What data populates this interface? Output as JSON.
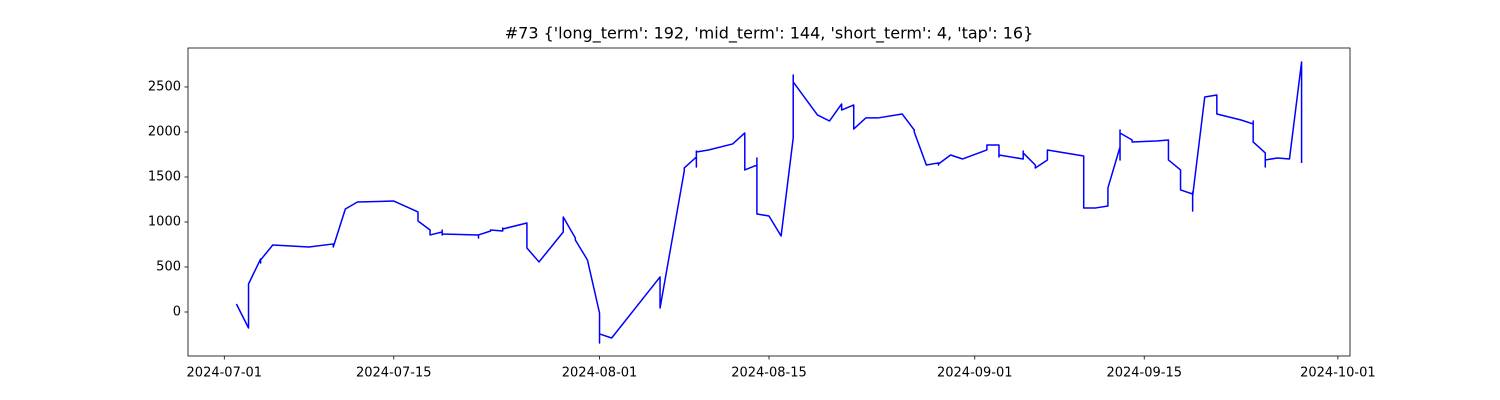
{
  "chart_data": {
    "type": "line",
    "title": "#73 {'long_term': 192, 'mid_term': 144, 'short_term': 4, 'tap': 16}",
    "x": [
      "2024-07-02",
      "2024-07-03",
      "2024-07-03",
      "2024-07-03",
      "2024-07-04",
      "2024-07-04",
      "2024-07-04",
      "2024-07-05",
      "2024-07-08",
      "2024-07-10",
      "2024-07-10",
      "2024-07-11",
      "2024-07-12",
      "2024-07-15",
      "2024-07-17",
      "2024-07-17",
      "2024-07-18",
      "2024-07-18",
      "2024-07-19",
      "2024-07-19",
      "2024-07-19",
      "2024-07-19",
      "2024-07-22",
      "2024-07-22",
      "2024-07-22",
      "2024-07-23",
      "2024-07-23",
      "2024-07-24",
      "2024-07-24",
      "2024-07-24",
      "2024-07-26",
      "2024-07-26",
      "2024-07-26",
      "2024-07-26",
      "2024-07-27",
      "2024-07-29",
      "2024-07-29",
      "2024-07-30",
      "2024-07-30",
      "2024-07-31",
      "2024-08-01",
      "2024-08-01",
      "2024-08-01",
      "2024-08-01",
      "2024-08-01",
      "2024-08-01",
      "2024-08-02",
      "2024-08-06",
      "2024-08-06",
      "2024-08-06",
      "2024-08-06",
      "2024-08-08",
      "2024-08-08",
      "2024-08-09",
      "2024-08-09",
      "2024-08-09",
      "2024-08-09",
      "2024-08-10",
      "2024-08-12",
      "2024-08-13",
      "2024-08-13",
      "2024-08-13",
      "2024-08-13",
      "2024-08-14",
      "2024-08-14",
      "2024-08-14",
      "2024-08-14",
      "2024-08-15",
      "2024-08-16",
      "2024-08-17",
      "2024-08-17",
      "2024-08-17",
      "2024-08-17",
      "2024-08-19",
      "2024-08-20",
      "2024-08-21",
      "2024-08-21",
      "2024-08-22",
      "2024-08-22",
      "2024-08-23",
      "2024-08-24",
      "2024-08-26",
      "2024-08-27",
      "2024-08-27",
      "2024-08-28",
      "2024-08-29",
      "2024-08-29",
      "2024-08-29",
      "2024-08-29",
      "2024-08-29",
      "2024-08-30",
      "2024-08-31",
      "2024-09-02",
      "2024-09-02",
      "2024-09-03",
      "2024-09-03",
      "2024-09-03",
      "2024-09-03",
      "2024-09-05",
      "2024-09-05",
      "2024-09-05",
      "2024-09-05",
      "2024-09-06",
      "2024-09-06",
      "2024-09-07",
      "2024-09-07",
      "2024-09-10",
      "2024-09-10",
      "2024-09-10",
      "2024-09-10",
      "2024-09-10",
      "2024-09-10",
      "2024-09-11",
      "2024-09-12",
      "2024-09-12",
      "2024-09-13",
      "2024-09-13",
      "2024-09-13",
      "2024-09-13",
      "2024-09-14",
      "2024-09-14",
      "2024-09-16",
      "2024-09-17",
      "2024-09-17",
      "2024-09-18",
      "2024-09-18",
      "2024-09-18",
      "2024-09-19",
      "2024-09-19",
      "2024-09-19",
      "2024-09-19",
      "2024-09-19",
      "2024-09-20",
      "2024-09-21",
      "2024-09-21",
      "2024-09-21",
      "2024-09-21",
      "2024-09-23",
      "2024-09-24",
      "2024-09-24",
      "2024-09-24",
      "2024-09-24",
      "2024-09-24",
      "2024-09-25",
      "2024-09-25",
      "2024-09-25",
      "2024-09-26",
      "2024-09-27",
      "2024-09-28",
      "2024-09-28"
    ],
    "values": [
      89,
      -178,
      67,
      311,
      589,
      544,
      578,
      744,
      722,
      756,
      722,
      1144,
      1222,
      1233,
      1111,
      1011,
      911,
      856,
      889,
      856,
      911,
      867,
      856,
      822,
      856,
      900,
      911,
      900,
      933,
      922,
      989,
      944,
      733,
      711,
      556,
      889,
      1056,
      822,
      800,
      578,
      -11,
      -278,
      -344,
      -189,
      -233,
      -244,
      -289,
      389,
      289,
      67,
      44,
      1567,
      1600,
      1722,
      1611,
      1789,
      1778,
      1800,
      1867,
      1989,
      1756,
      1878,
      1578,
      1633,
      1711,
      1189,
      1089,
      1067,
      844,
      1933,
      2633,
      2511,
      2556,
      2189,
      2122,
      2311,
      2244,
      2300,
      2033,
      2156,
      2156,
      2200,
      2022,
      2000,
      1633,
      1656,
      1644,
      1633,
      1656,
      1644,
      1744,
      1700,
      1800,
      1856,
      1856,
      1800,
      1722,
      1744,
      1700,
      1778,
      1789,
      1767,
      1633,
      1600,
      1689,
      1800,
      1733,
      1500,
      1456,
      1389,
      1267,
      1156,
      1156,
      1178,
      1378,
      1833,
      1689,
      2022,
      1989,
      1911,
      1889,
      1900,
      1911,
      1689,
      1578,
      1444,
      1356,
      1311,
      1333,
      1322,
      1122,
      1289,
      2389,
      2411,
      2289,
      2244,
      2200,
      2133,
      2089,
      2122,
      1922,
      1967,
      1889,
      1767,
      1611,
      1689,
      1711,
      1700,
      2778,
      1656
    ],
    "color": "#0000ff",
    "xlim": [
      "2024-06-28",
      "2024-10-02"
    ],
    "xticks": [
      "2024-07-01",
      "2024-07-15",
      "2024-08-01",
      "2024-08-15",
      "2024-09-01",
      "2024-09-15",
      "2024-10-01"
    ],
    "ylim": [
      -489,
      2933
    ],
    "yticks": [
      0,
      500,
      1000,
      1500,
      2000,
      2500
    ]
  }
}
